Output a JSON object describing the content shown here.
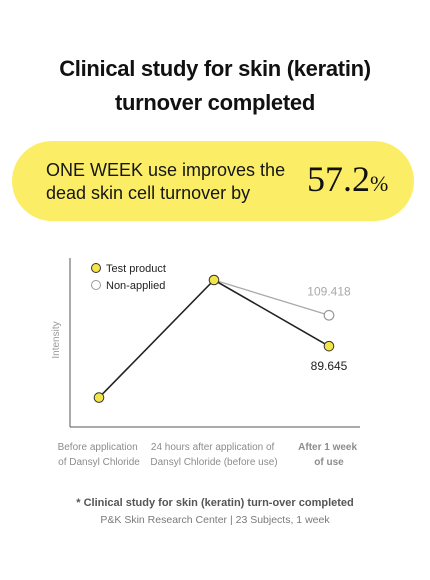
{
  "title": {
    "line1": "Clinical study for skin (keratin)",
    "line2": "turnover completed"
  },
  "banner": {
    "line1": "ONE WEEK use improves the",
    "line2": "dead skin cell turnover by",
    "value": "57.2",
    "unit": "%"
  },
  "chart_data": {
    "type": "line",
    "ylabel": "Intensity",
    "categories": [
      [
        "Before application",
        "of Dansyl Chloride"
      ],
      [
        "24 hours after application of",
        "Dansyl Chloride (before use)"
      ],
      [
        "After 1 week",
        "of use"
      ]
    ],
    "series": [
      {
        "name": "Test product",
        "values": [
          null,
          null,
          89.645
        ],
        "color": "#222222",
        "marker_fill": "#f3e547"
      },
      {
        "name": "Non-applied",
        "values": [
          null,
          null,
          109.418
        ],
        "color": "#aaaaaa",
        "marker_fill": "#ffffff"
      }
    ],
    "relative_levels": [
      0.2,
      1.0,
      0.55,
      0.76
    ],
    "data_labels": [
      "89.645",
      "109.418"
    ],
    "grid": false,
    "legend_position": "top-left"
  },
  "footnote": {
    "line1": "* Clinical study for skin (keratin) turn-over completed",
    "line2": "P&K Skin Research Center | 23 Subjects, 1 week"
  }
}
